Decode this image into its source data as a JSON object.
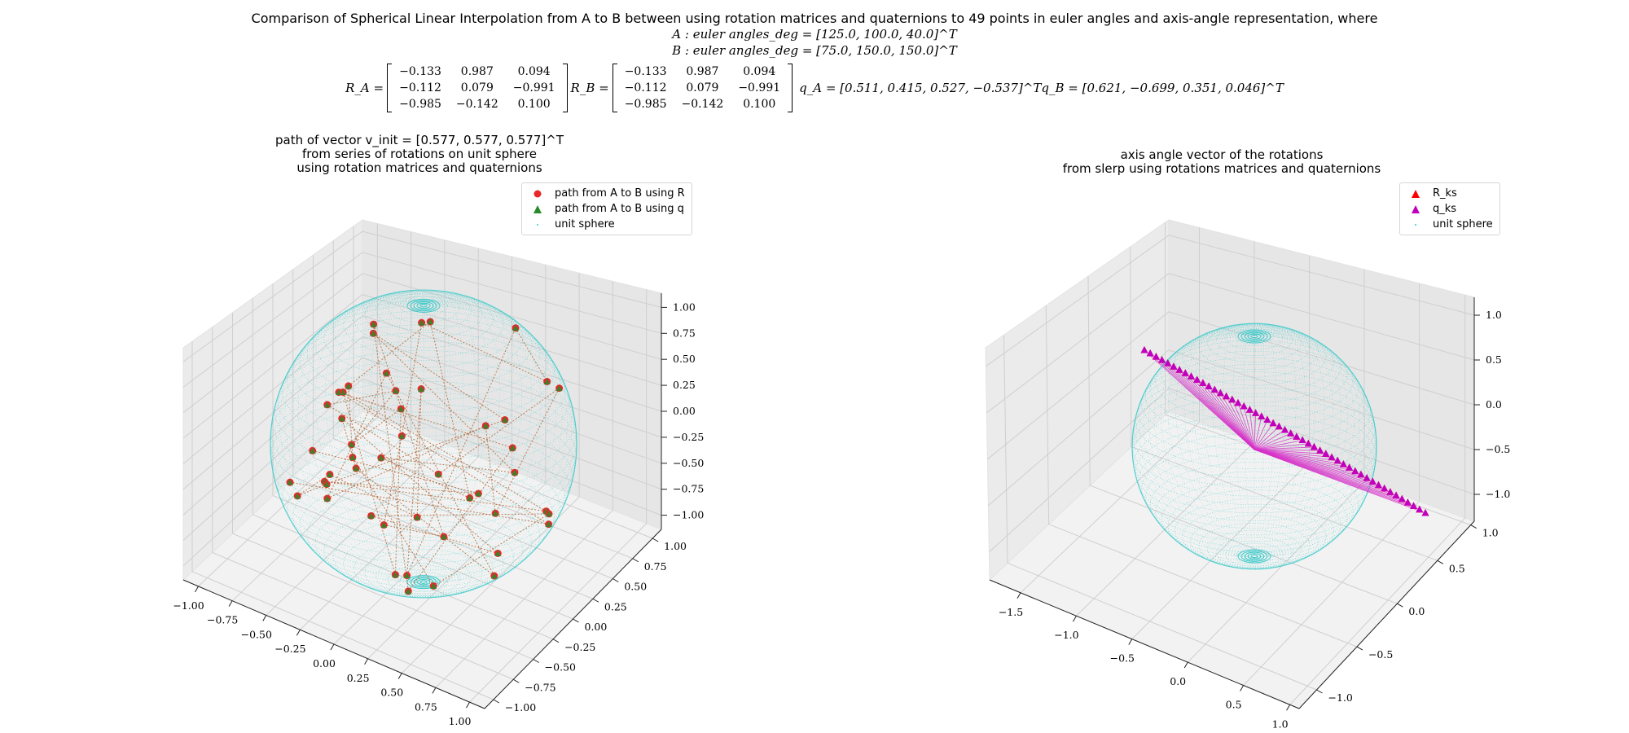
{
  "figure": {
    "suptitle": "Comparison of Spherical Linear Interpolation from A to B between using rotation matrices and quaternions to 49 points in euler angles and axis-angle representation, where",
    "line_a": "A : euler angles_deg = [125.0, 100.0, 40.0]^T",
    "line_b": "B : euler angles_deg = [75.0, 150.0, 150.0]^T",
    "ra_label": "R_A =",
    "rb_label": "R_B =",
    "ra_matrix": [
      [
        "−0.133",
        "0.987",
        "0.094"
      ],
      [
        "−0.112",
        "0.079",
        "−0.991"
      ],
      [
        "−0.985",
        "−0.142",
        "0.100"
      ]
    ],
    "rb_matrix": [
      [
        "−0.133",
        "0.987",
        "0.094"
      ],
      [
        "−0.112",
        "0.079",
        "−0.991"
      ],
      [
        "−0.985",
        "−0.142",
        "0.100"
      ]
    ],
    "qa_text": "q_A = [0.511, 0.415, 0.527, −0.537]^T",
    "qb_text": "q_B = [0.621, −0.699, 0.351, 0.046]^T"
  },
  "colors": {
    "sphere": "#3cc9c9",
    "R_path": "#e8282a",
    "q_path": "#2a8a2a",
    "R_ks": "#ff0000",
    "q_ks": "#c000c0",
    "pane_grid": "#cfcfcf"
  },
  "chart_data": [
    {
      "type": "scatter",
      "subtitle": [
        "path of vector v_init = [0.577, 0.577, 0.577]^T",
        "from series of rotations on unit sphere",
        "using rotation matrices and quaternions"
      ],
      "legend": [
        "path from A to B using R",
        "path from A to B using q",
        "unit sphere"
      ],
      "legend_position": "top-right",
      "grid": true,
      "x_ticks": [
        "−1.00",
        "−0.75",
        "−0.50",
        "−0.25",
        "0.00",
        "0.25",
        "0.50",
        "0.75",
        "1.00"
      ],
      "y_ticks": [
        "−1.00",
        "−0.75",
        "−0.50",
        "−0.25",
        "0.00",
        "0.25",
        "0.50",
        "0.75",
        "1.00"
      ],
      "z_ticks": [
        "1.00",
        "0.75",
        "0.50",
        "0.25",
        "0.00",
        "−0.25",
        "−0.50",
        "−0.75",
        "−1.00"
      ],
      "xlim": [
        -1,
        1
      ],
      "ylim": [
        -1,
        1
      ],
      "zlim": [
        -1,
        1
      ],
      "points": 49
    },
    {
      "type": "scatter",
      "subtitle": [
        "axis angle vector of the rotations",
        "from slerp using rotations matrices and quaternions"
      ],
      "legend": [
        "R_ks",
        "q_ks",
        "unit sphere"
      ],
      "legend_position": "top-right",
      "grid": true,
      "x_ticks": [
        "−1.5",
        "−1.0",
        "−0.5",
        "0.0",
        "0.5",
        "1.0"
      ],
      "y_ticks": [
        "−1.0",
        "−0.5",
        "0.0",
        "0.5",
        "1.0"
      ],
      "z_ticks": [
        "1.0",
        "0.5",
        "0.0",
        "−0.5",
        "−1.0"
      ],
      "xlim": [
        -1.6,
        1.1
      ],
      "ylim": [
        -1.0,
        1.3
      ],
      "zlim": [
        -1.3,
        1.1
      ],
      "points": 49,
      "endpoints": {
        "start": [
          -1.5,
          1.0,
          0.6
        ],
        "end": [
          1.1,
          -0.9,
          -0.6
        ]
      }
    }
  ]
}
